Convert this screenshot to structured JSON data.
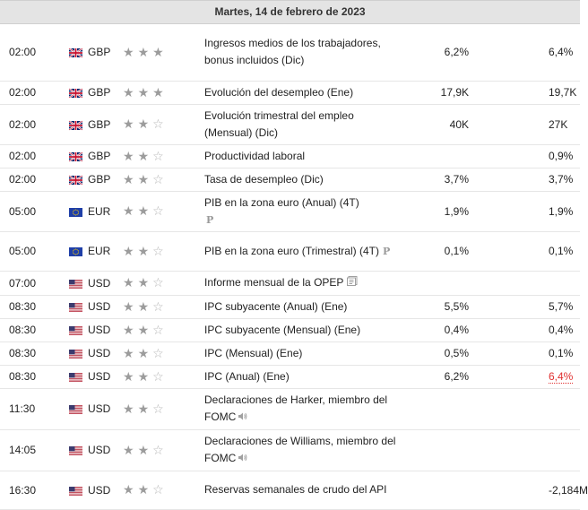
{
  "header": {
    "date": "Martes, 14 de febrero de 2023"
  },
  "rows": [
    {
      "time": "02:00",
      "flag": "gb",
      "currency": "GBP",
      "importance": 3,
      "event": "Ingresos medios de los trabajadores, bonus incluidos (Dic)",
      "icon": "",
      "actual": "6,2%",
      "forecast": "",
      "previous": "6,4%",
      "prev_revised": false
    },
    {
      "time": "02:00",
      "flag": "gb",
      "currency": "GBP",
      "importance": 3,
      "event": "Evolución del desempleo (Ene)",
      "icon": "",
      "actual": "17,9K",
      "forecast": "",
      "previous": "19,7K",
      "prev_revised": false
    },
    {
      "time": "02:00",
      "flag": "gb",
      "currency": "GBP",
      "importance": 2,
      "event": "Evolución trimestral del empleo (Mensual) (Dic)",
      "icon": "",
      "actual": "40K",
      "forecast": "",
      "previous": "27K",
      "prev_revised": false
    },
    {
      "time": "02:00",
      "flag": "gb",
      "currency": "GBP",
      "importance": 2,
      "event": "Productividad laboral",
      "icon": "",
      "actual": "",
      "forecast": "",
      "previous": "0,9%",
      "prev_revised": false
    },
    {
      "time": "02:00",
      "flag": "gb",
      "currency": "GBP",
      "importance": 2,
      "event": "Tasa de desempleo (Dic)",
      "icon": "",
      "actual": "3,7%",
      "forecast": "",
      "previous": "3,7%",
      "prev_revised": false
    },
    {
      "time": "05:00",
      "flag": "eu",
      "currency": "EUR",
      "importance": 2,
      "event": "PIB en la zona euro (Anual) (4T)",
      "icon": "prelim",
      "icon_text": "P",
      "actual": "1,9%",
      "forecast": "",
      "previous": "1,9%",
      "prev_revised": false
    },
    {
      "time": "05:00",
      "flag": "eu",
      "currency": "EUR",
      "importance": 2,
      "event": "PIB en la zona euro (Trimestral) (4T)",
      "icon": "prelim",
      "icon_text": "P",
      "actual": "0,1%",
      "forecast": "",
      "previous": "0,1%",
      "prev_revised": false
    },
    {
      "time": "07:00",
      "flag": "us",
      "currency": "USD",
      "importance": 2,
      "event": "Informe mensual de la OPEP",
      "icon": "doc",
      "actual": "",
      "forecast": "",
      "previous": "",
      "prev_revised": false
    },
    {
      "time": "08:30",
      "flag": "us",
      "currency": "USD",
      "importance": 2,
      "event": "IPC subyacente (Anual) (Ene)",
      "icon": "",
      "actual": "5,5%",
      "forecast": "",
      "previous": "5,7%",
      "prev_revised": false
    },
    {
      "time": "08:30",
      "flag": "us",
      "currency": "USD",
      "importance": 2,
      "event": "IPC subyacente (Mensual) (Ene)",
      "icon": "",
      "actual": "0,4%",
      "forecast": "",
      "previous": "0,4%",
      "prev_revised": false
    },
    {
      "time": "08:30",
      "flag": "us",
      "currency": "USD",
      "importance": 2,
      "event": "IPC (Mensual) (Ene)",
      "icon": "",
      "actual": "0,5%",
      "forecast": "",
      "previous": "0,1%",
      "prev_revised": false
    },
    {
      "time": "08:30",
      "flag": "us",
      "currency": "USD",
      "importance": 2,
      "event": "IPC (Anual) (Ene)",
      "icon": "",
      "actual": "6,2%",
      "forecast": "",
      "previous": "6,4%",
      "prev_revised": true
    },
    {
      "time": "11:30",
      "flag": "us",
      "currency": "USD",
      "importance": 2,
      "event": "Declaraciones de Harker, miembro del FOMC",
      "icon": "speaker",
      "actual": "",
      "forecast": "",
      "previous": "",
      "prev_revised": false
    },
    {
      "time": "14:05",
      "flag": "us",
      "currency": "USD",
      "importance": 2,
      "event": "Declaraciones de Williams, miembro del FOMC",
      "icon": "speaker",
      "actual": "",
      "forecast": "",
      "previous": "",
      "prev_revised": false
    },
    {
      "time": "16:30",
      "flag": "us",
      "currency": "USD",
      "importance": 2,
      "event": "Reservas semanales de crudo del API",
      "icon": "",
      "actual": "",
      "forecast": "",
      "previous": "-2,184M",
      "prev_revised": false
    }
  ],
  "colors": {
    "star_on": "#9c9c9c",
    "star_off": "#b5b5b5",
    "revised": "#e03030",
    "header_bg": "#e4e4e4"
  }
}
